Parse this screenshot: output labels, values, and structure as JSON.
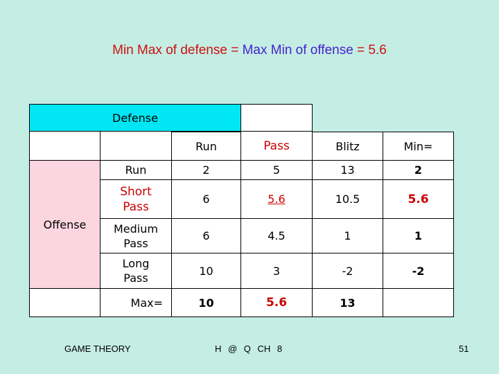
{
  "title": {
    "part1": "Min Max of defense = ",
    "part2": "Max Min of offense",
    "part3": " = 5.6"
  },
  "table": {
    "defense_label": "Defense",
    "offense_label": "Offense",
    "col_headers": [
      "Run",
      "Pass",
      "Blitz",
      "Min="
    ],
    "rows": [
      {
        "label": "Run",
        "values": [
          "2",
          "5",
          "13"
        ],
        "min": "2"
      },
      {
        "label": "Short Pass",
        "values": [
          "6",
          "5.6",
          "10.5"
        ],
        "min": "5.6"
      },
      {
        "label": "Medium Pass",
        "values": [
          "6",
          "4.5",
          "1"
        ],
        "min": "1"
      },
      {
        "label": "Long Pass",
        "values": [
          "10",
          "3",
          "-2"
        ],
        "min": "-2"
      }
    ],
    "max_label": "Max=",
    "max_values": [
      "10",
      "5.6",
      "13"
    ]
  },
  "footer": {
    "left": "GAME THEORY",
    "center": "H @ Q CH 8",
    "page": "51"
  },
  "colors": {
    "background": "#c4ede3",
    "defense_header": "#00e7f3",
    "offense_pink": "#fbd6e0",
    "highlight_red": "#cc0000",
    "title_red": "#cc1111",
    "title_blue": "#4422cc"
  }
}
